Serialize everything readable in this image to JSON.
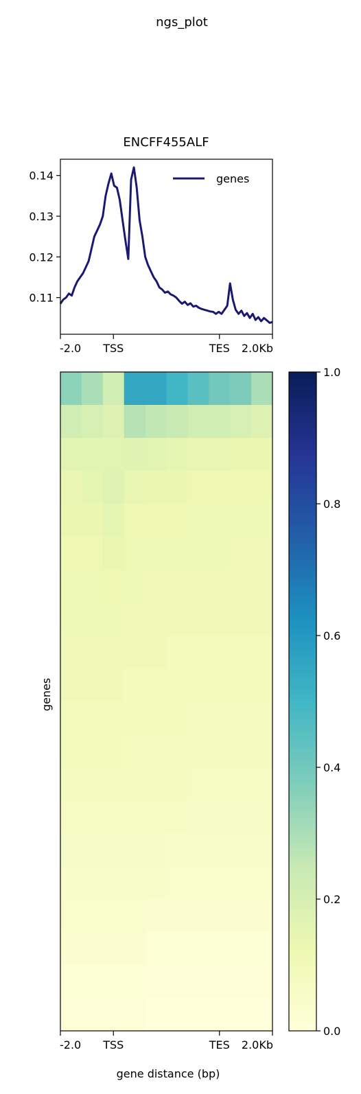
{
  "figure_title": "ngs_plot",
  "chart_data": [
    {
      "type": "line",
      "title": "ENCFF455ALF",
      "xlabel": "",
      "ylabel": "",
      "x_tick_labels": [
        "-2.0",
        "TSS",
        "TES",
        "2.0Kb"
      ],
      "y_ticks": [
        "0.11",
        "0.12",
        "0.13",
        "0.14"
      ],
      "ylim": [
        0.101,
        0.144
      ],
      "legend": {
        "position": "top-right",
        "entries": [
          "genes"
        ]
      },
      "grid": false,
      "series": [
        {
          "name": "genes",
          "color": "#191970",
          "x": [
            0,
            4,
            8,
            12,
            16,
            20,
            24,
            28,
            32,
            36,
            40,
            44,
            48,
            52,
            56,
            60,
            64,
            68,
            72,
            76,
            80,
            84,
            88,
            92,
            96,
            100,
            104,
            108,
            112,
            116,
            120,
            124,
            128,
            132,
            136,
            140,
            144,
            148,
            152,
            156,
            160,
            164,
            168,
            172,
            176,
            180,
            184,
            188,
            192,
            196,
            200,
            204,
            208,
            212,
            216,
            220,
            224,
            228,
            232,
            236,
            240,
            244,
            248,
            252,
            256,
            260,
            264,
            268,
            272,
            276,
            280,
            284,
            288,
            292,
            296,
            300
          ],
          "values": [
            0.1085,
            0.1095,
            0.11,
            0.111,
            0.1105,
            0.1125,
            0.114,
            0.115,
            0.116,
            0.1175,
            0.119,
            0.122,
            0.125,
            0.1265,
            0.128,
            0.13,
            0.135,
            0.138,
            0.1405,
            0.1375,
            0.137,
            0.134,
            0.129,
            0.124,
            0.1195,
            0.139,
            0.142,
            0.137,
            0.129,
            0.125,
            0.12,
            0.118,
            0.1165,
            0.115,
            0.114,
            0.1125,
            0.112,
            0.1112,
            0.1115,
            0.1108,
            0.1105,
            0.11,
            0.1092,
            0.1085,
            0.109,
            0.1082,
            0.1086,
            0.1078,
            0.108,
            0.1075,
            0.1072,
            0.107,
            0.1068,
            0.1066,
            0.1065,
            0.106,
            0.1065,
            0.106,
            0.107,
            0.108,
            0.1135,
            0.1095,
            0.107,
            0.106,
            0.1068,
            0.1055,
            0.1062,
            0.105,
            0.106,
            0.1045,
            0.1052,
            0.1042,
            0.105,
            0.1044,
            0.1038,
            0.104
          ]
        }
      ]
    },
    {
      "type": "heatmap",
      "title": "",
      "xlabel": "gene distance (bp)",
      "ylabel": "genes",
      "x_tick_labels": [
        "-2.0",
        "TSS",
        "TES",
        "2.0Kb"
      ],
      "colormap": "YlGnBu",
      "colorbar": {
        "ticks": [
          "0.0",
          "0.2",
          "0.4",
          "0.6",
          "0.8",
          "1.0"
        ],
        "range": [
          0.0,
          1.0
        ]
      },
      "color_stops": [
        "#ffffd9",
        "#edf8b1",
        "#c7e9b4",
        "#7fcdbb",
        "#41b6c4",
        "#1d91c0",
        "#225ea8",
        "#253494",
        "#081d58"
      ],
      "rows": [
        [
          0.35,
          0.3,
          0.22,
          0.55,
          0.55,
          0.5,
          0.45,
          0.4,
          0.38,
          0.3
        ],
        [
          0.22,
          0.2,
          0.18,
          0.28,
          0.26,
          0.24,
          0.22,
          0.22,
          0.2,
          0.18
        ],
        [
          0.16,
          0.16,
          0.16,
          0.17,
          0.16,
          0.15,
          0.14,
          0.14,
          0.13,
          0.13
        ],
        [
          0.14,
          0.15,
          0.17,
          0.14,
          0.13,
          0.13,
          0.12,
          0.12,
          0.12,
          0.12
        ],
        [
          0.13,
          0.13,
          0.15,
          0.12,
          0.12,
          0.12,
          0.11,
          0.11,
          0.11,
          0.11
        ],
        [
          0.12,
          0.12,
          0.13,
          0.11,
          0.11,
          0.11,
          0.11,
          0.11,
          0.1,
          0.1
        ],
        [
          0.11,
          0.11,
          0.12,
          0.11,
          0.1,
          0.1,
          0.1,
          0.1,
          0.1,
          0.1
        ],
        [
          0.11,
          0.11,
          0.11,
          0.1,
          0.1,
          0.1,
          0.1,
          0.1,
          0.1,
          0.1
        ],
        [
          0.1,
          0.1,
          0.1,
          0.1,
          0.1,
          0.09,
          0.09,
          0.09,
          0.09,
          0.09
        ],
        [
          0.1,
          0.1,
          0.1,
          0.09,
          0.09,
          0.09,
          0.09,
          0.09,
          0.09,
          0.09
        ],
        [
          0.09,
          0.09,
          0.09,
          0.09,
          0.09,
          0.09,
          0.08,
          0.08,
          0.08,
          0.08
        ],
        [
          0.09,
          0.09,
          0.09,
          0.08,
          0.08,
          0.08,
          0.08,
          0.08,
          0.08,
          0.08
        ],
        [
          0.08,
          0.08,
          0.08,
          0.08,
          0.08,
          0.08,
          0.07,
          0.07,
          0.07,
          0.07
        ],
        [
          0.07,
          0.07,
          0.07,
          0.07,
          0.07,
          0.07,
          0.06,
          0.06,
          0.06,
          0.06
        ],
        [
          0.06,
          0.06,
          0.06,
          0.06,
          0.06,
          0.05,
          0.05,
          0.05,
          0.05,
          0.05
        ],
        [
          0.05,
          0.05,
          0.05,
          0.05,
          0.05,
          0.04,
          0.04,
          0.04,
          0.04,
          0.04
        ],
        [
          0.04,
          0.04,
          0.04,
          0.04,
          0.03,
          0.03,
          0.03,
          0.03,
          0.03,
          0.03
        ],
        [
          0.03,
          0.03,
          0.03,
          0.03,
          0.02,
          0.02,
          0.02,
          0.02,
          0.02,
          0.02
        ],
        [
          0.02,
          0.02,
          0.02,
          0.02,
          0.01,
          0.01,
          0.01,
          0.01,
          0.01,
          0.01
        ],
        [
          0.01,
          0.01,
          0.01,
          0.01,
          0.0,
          0.0,
          0.0,
          0.0,
          0.0,
          0.0
        ]
      ]
    }
  ]
}
